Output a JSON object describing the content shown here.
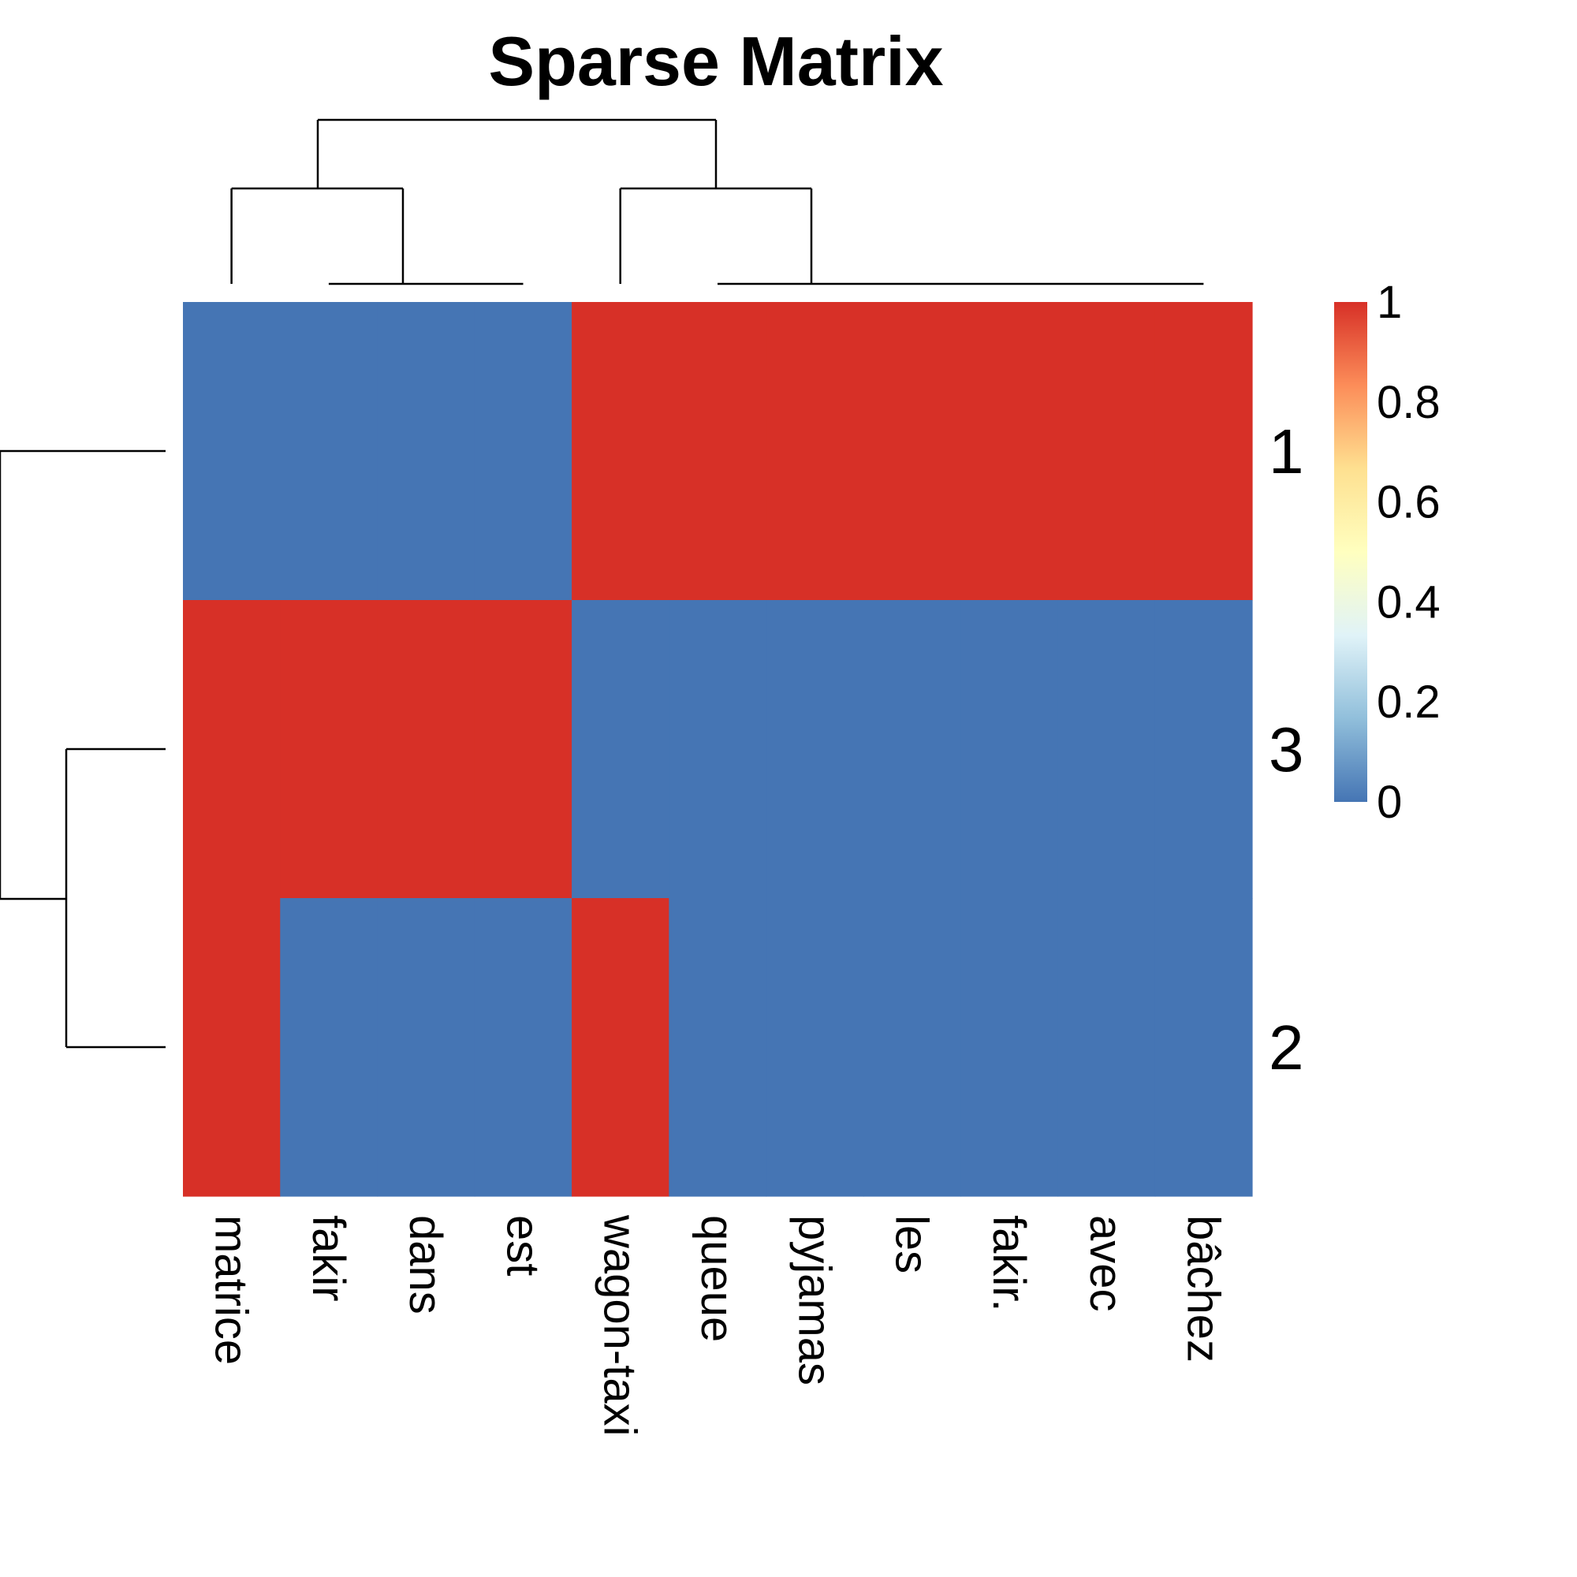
{
  "chart_data": {
    "type": "heatmap",
    "title": "Sparse Matrix",
    "columns": [
      "matrice",
      "fakir",
      "dans",
      "est",
      "wagon-taxi",
      "queue",
      "pyjamas",
      "les",
      "fakir.",
      "avec",
      "bâchez"
    ],
    "rows": [
      "1",
      "3",
      "2"
    ],
    "values": [
      [
        0,
        0,
        0,
        0,
        1,
        1,
        1,
        1,
        1,
        1,
        1
      ],
      [
        1,
        1,
        1,
        1,
        0,
        0,
        0,
        0,
        0,
        0,
        0
      ],
      [
        1,
        0,
        0,
        0,
        1,
        0,
        0,
        0,
        0,
        0,
        0
      ]
    ],
    "color_scale": {
      "stops": [
        "#4575b4",
        "#91bfdb",
        "#e0f3f8",
        "#ffffbf",
        "#fee090",
        "#fc8d59",
        "#d73027"
      ],
      "low_color": "#4575b4",
      "high_color": "#d73027",
      "range": [
        0,
        1
      ],
      "ticks": [
        "0",
        "0.2",
        "0.4",
        "0.6",
        "0.8",
        "1"
      ]
    },
    "column_dendrogram": true,
    "row_dendrogram": true,
    "legend_position": "right"
  }
}
